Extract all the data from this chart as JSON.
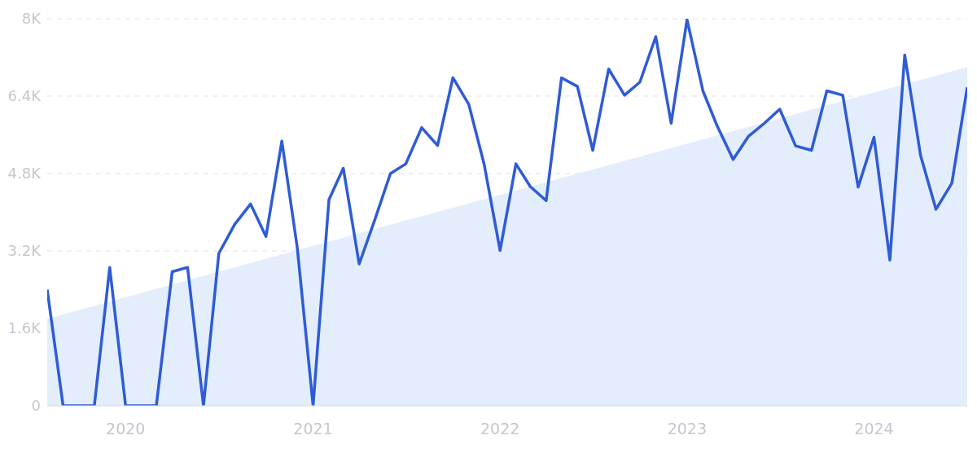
{
  "chart_data": {
    "type": "line",
    "x": [
      "2019-08",
      "2019-09",
      "2019-10",
      "2019-11",
      "2019-12",
      "2020-01",
      "2020-02",
      "2020-03",
      "2020-04",
      "2020-05",
      "2020-06",
      "2020-07",
      "2020-08",
      "2020-09",
      "2020-10",
      "2020-11",
      "2020-12",
      "2021-01",
      "2021-02",
      "2021-03",
      "2021-04",
      "2021-05",
      "2021-06",
      "2021-07",
      "2021-08",
      "2021-09",
      "2021-10",
      "2021-11",
      "2021-12",
      "2022-01",
      "2022-02",
      "2022-03",
      "2022-04",
      "2022-05",
      "2022-06",
      "2022-07",
      "2022-08",
      "2022-09",
      "2022-10",
      "2022-11",
      "2022-12",
      "2023-01",
      "2023-02",
      "2023-03",
      "2023-04",
      "2023-05",
      "2023-06",
      "2023-07",
      "2023-08",
      "2023-09",
      "2023-10",
      "2023-11",
      "2023-12",
      "2024-01",
      "2024-02",
      "2024-03",
      "2024-04",
      "2024-05",
      "2024-06",
      "2024-07"
    ],
    "series": [
      {
        "type": "area",
        "color": "#dce8fb",
        "x": [
          "2019-08",
          "2024-07"
        ],
        "values": [
          1800,
          7000
        ]
      },
      {
        "color": "#2f5bd5",
        "values": [
          2400,
          0,
          0,
          0,
          2860,
          0,
          0,
          0,
          2770,
          2860,
          0,
          3150,
          3750,
          4170,
          3500,
          5470,
          3280,
          0,
          4260,
          4910,
          2930,
          3830,
          4800,
          5000,
          5750,
          5380,
          6780,
          6230,
          4990,
          3210,
          5000,
          4530,
          4240,
          6780,
          6600,
          5280,
          6960,
          6420,
          6690,
          7630,
          5840,
          7980,
          6510,
          5780,
          5090,
          5570,
          5840,
          6130,
          5370,
          5280,
          6510,
          6420,
          4520,
          5550,
          3010,
          7250,
          5170,
          4060,
          4600,
          6580
        ]
      }
    ],
    "xlim": [
      "2019-08",
      "2024-07"
    ],
    "xticks": [
      "2020",
      "2021",
      "2022",
      "2023",
      "2024"
    ],
    "ylim": [
      0,
      8000
    ],
    "yticks": [
      0,
      {
        "value": 1600,
        "label": "1.6K"
      },
      {
        "value": 3200,
        "label": "3.2K"
      },
      {
        "value": 4800,
        "label": "4.8K"
      },
      {
        "value": 6400,
        "label": "6.4K"
      },
      {
        "value": 8000,
        "label": "8K"
      }
    ],
    "grid": "y",
    "marker": "none",
    "line_style": "solid"
  }
}
